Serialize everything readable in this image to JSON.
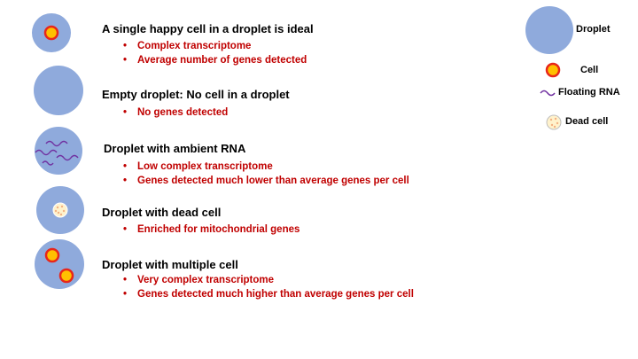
{
  "colors": {
    "droplet": "#8faadc",
    "cell_ring": "#e8261a",
    "cell_core": "#ffc000",
    "rna": "#7030a0",
    "dead_cell": "#fff2cc",
    "dead_cell_dots": "#f4b183",
    "bullet_text": "#c00000"
  },
  "rows": [
    {
      "title": "A single happy cell in a droplet is ideal",
      "bullets": [
        "Complex transcriptome",
        "Average number of genes detected"
      ]
    },
    {
      "title": "Empty droplet: No cell in  a droplet",
      "bullets": [
        "No genes detected"
      ]
    },
    {
      "title": "Droplet with ambient RNA",
      "bullets": [
        "Low complex transcriptome",
        "Genes detected much lower than average genes per cell"
      ]
    },
    {
      "title": "Droplet with dead cell",
      "bullets": [
        "Enriched for mitochondrial genes"
      ]
    },
    {
      "title": "Droplet with multiple cell",
      "bullets": [
        "Very complex transcriptome",
        "Genes detected much higher than average genes per cell"
      ]
    }
  ],
  "legend": {
    "droplet": "Droplet",
    "cell": "Cell",
    "floating_rna": "Floating RNA",
    "dead_cell": "Dead cell"
  }
}
